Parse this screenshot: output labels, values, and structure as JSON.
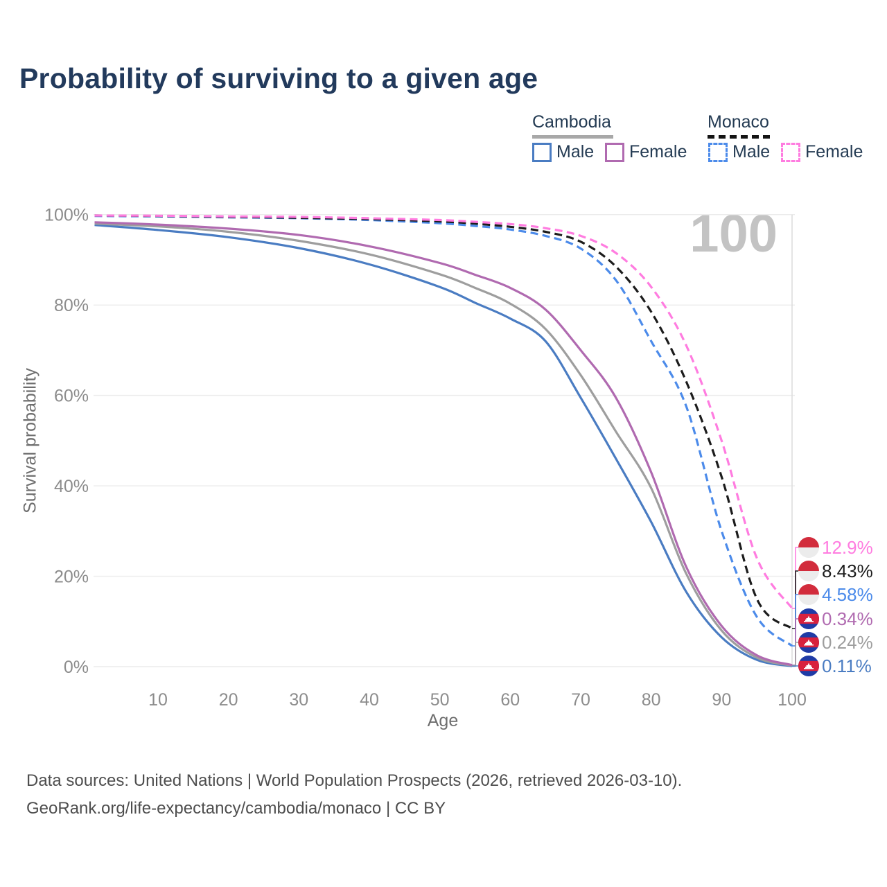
{
  "title": "Probability of surviving to a given age",
  "watermark": "100",
  "legend": {
    "groups": [
      {
        "label": "Cambodia",
        "line_style": "solid",
        "line_color": "#a8a8a8",
        "items": [
          {
            "label": "Male",
            "color": "#4a7cc2"
          },
          {
            "label": "Female",
            "color": "#b06ab0"
          }
        ]
      },
      {
        "label": "Monaco",
        "line_style": "dashed",
        "line_color": "#141414",
        "items": [
          {
            "label": "Male",
            "color": "#4c8bea"
          },
          {
            "label": "Female",
            "color": "#ff7ce0"
          }
        ]
      }
    ]
  },
  "footer": {
    "line1": "Data sources: United Nations | World Population Prospects (2026, retrieved 2026-03-10).",
    "line2": "GeoRank.org/life-expectancy/cambodia/monaco | CC BY"
  },
  "chart_data": {
    "type": "line",
    "title": "Probability of surviving to a given age",
    "xlabel": "Age",
    "ylabel": "Survival probability",
    "xlim": [
      1,
      100
    ],
    "ylim": [
      0,
      100
    ],
    "grid": "horizontal",
    "age_marker": 100,
    "x_ticks": [
      10,
      20,
      30,
      40,
      50,
      60,
      70,
      80,
      90,
      100
    ],
    "y_ticks_pct": [
      0,
      20,
      40,
      60,
      80,
      100
    ],
    "y_tick_suffix": "%",
    "x": [
      1,
      10,
      20,
      30,
      40,
      50,
      55,
      60,
      65,
      70,
      75,
      80,
      85,
      90,
      95,
      100
    ],
    "series": [
      {
        "name": "Monaco Female",
        "country": "Monaco",
        "sex": "female",
        "flag": "monaco",
        "color": "#ff7ce0",
        "dash": true,
        "end_label": "12.9%",
        "end_value": 12.9,
        "values": [
          99.8,
          99.75,
          99.6,
          99.5,
          99.2,
          98.8,
          98.4,
          97.9,
          97.0,
          95.3,
          91.5,
          84.0,
          71.0,
          50.0,
          24.0,
          12.9
        ]
      },
      {
        "name": "Monaco Total",
        "country": "Monaco",
        "sex": "total",
        "flag": "monaco",
        "color": "#1c1c1c",
        "dash": true,
        "end_label": "8.43%",
        "end_value": 8.43,
        "values": [
          99.8,
          99.7,
          99.5,
          99.3,
          99.0,
          98.5,
          98.0,
          97.3,
          96.2,
          94.0,
          88.5,
          78.5,
          63.0,
          42.0,
          15.0,
          8.43
        ]
      },
      {
        "name": "Monaco Male",
        "country": "Monaco",
        "sex": "male",
        "flag": "monaco",
        "color": "#4c8bea",
        "dash": true,
        "end_label": "4.58%",
        "end_value": 4.58,
        "values": [
          99.7,
          99.6,
          99.4,
          99.2,
          98.8,
          98.1,
          97.5,
          96.7,
          95.3,
          92.5,
          85.5,
          72.0,
          57.5,
          30.0,
          11.0,
          4.58
        ]
      },
      {
        "name": "Cambodia Female",
        "country": "Cambodia",
        "sex": "female",
        "flag": "cambodia",
        "color": "#b06ab0",
        "dash": false,
        "end_label": "0.34%",
        "end_value": 0.34,
        "values": [
          98.3,
          97.8,
          96.9,
          95.5,
          93.0,
          89.3,
          86.7,
          83.8,
          79.0,
          70.0,
          59.5,
          43.0,
          22.0,
          9.0,
          2.5,
          0.34
        ]
      },
      {
        "name": "Cambodia Total",
        "country": "Cambodia",
        "sex": "total",
        "flag": "cambodia",
        "color": "#9e9e9e",
        "dash": false,
        "end_label": "0.24%",
        "end_value": 0.24,
        "values": [
          98.0,
          97.4,
          96.2,
          94.2,
          91.2,
          86.8,
          83.8,
          80.3,
          74.7,
          64.5,
          52.0,
          39.5,
          20.5,
          8.0,
          2.0,
          0.24
        ]
      },
      {
        "name": "Cambodia Male",
        "country": "Cambodia",
        "sex": "male",
        "flag": "cambodia",
        "color": "#4a7cc2",
        "dash": false,
        "end_label": "0.11%",
        "end_value": 0.11,
        "values": [
          97.7,
          96.6,
          95.0,
          92.6,
          89.0,
          84.0,
          80.5,
          77.0,
          72.0,
          59.5,
          46.0,
          32.0,
          16.5,
          6.5,
          1.5,
          0.11
        ]
      }
    ]
  }
}
